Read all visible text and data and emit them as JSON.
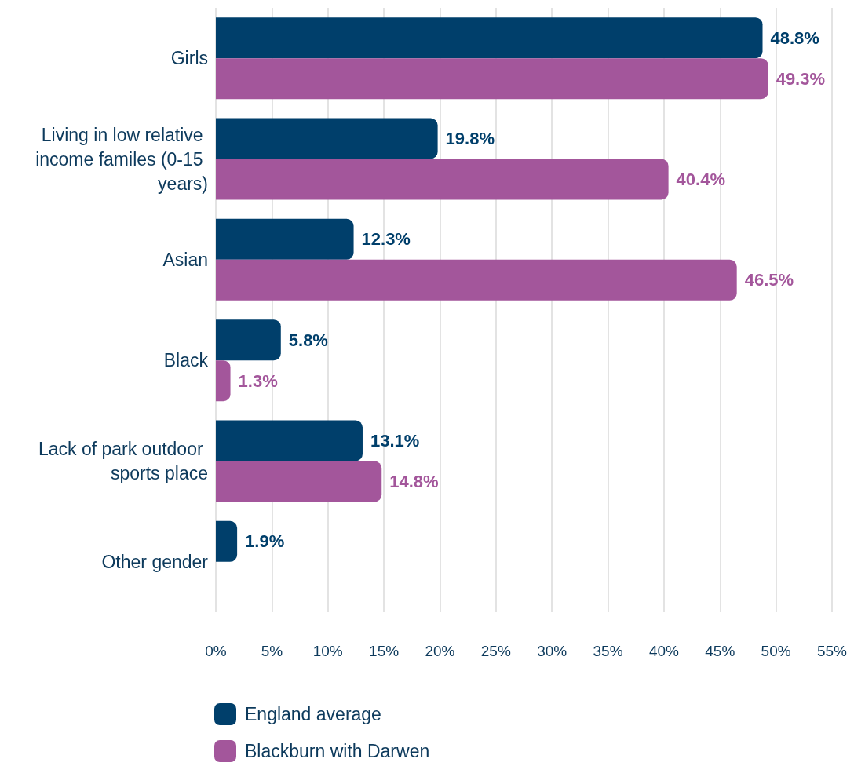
{
  "chart_data": {
    "type": "bar",
    "orientation": "horizontal",
    "categories": [
      "Girls",
      "Living in low relative income familes (0-15 years)",
      "Asian",
      "Black",
      "Lack of park outdoor sports place",
      "Other gender"
    ],
    "series": [
      {
        "name": "England average",
        "color": "#003f6b",
        "values": [
          48.8,
          19.8,
          12.3,
          5.8,
          13.1,
          1.9
        ],
        "value_labels": [
          "48.8%",
          "19.8%",
          "12.3%",
          "5.8%",
          "13.1%",
          "1.9%"
        ]
      },
      {
        "name": "Blackburn with Darwen",
        "color": "#a3569b",
        "values": [
          49.3,
          40.4,
          46.5,
          1.3,
          14.8,
          null
        ],
        "value_labels": [
          "49.3%",
          "40.4%",
          "46.5%",
          "1.3%",
          "14.8%",
          null
        ]
      }
    ],
    "xlim": [
      0,
      55
    ],
    "xticks": [
      {
        "value": 0,
        "label": "0%"
      },
      {
        "value": 5,
        "label": "5%"
      },
      {
        "value": 10,
        "label": "10%"
      },
      {
        "value": 15,
        "label": "15%"
      },
      {
        "value": 20,
        "label": "20%"
      },
      {
        "value": 25,
        "label": "25%"
      },
      {
        "value": 30,
        "label": "30%"
      },
      {
        "value": 35,
        "label": "35%"
      },
      {
        "value": 40,
        "label": "40%"
      },
      {
        "value": 45,
        "label": "45%"
      },
      {
        "value": 50,
        "label": "50%"
      },
      {
        "value": 55,
        "label": "55%"
      }
    ],
    "grid": "x",
    "legend": "bottom"
  }
}
